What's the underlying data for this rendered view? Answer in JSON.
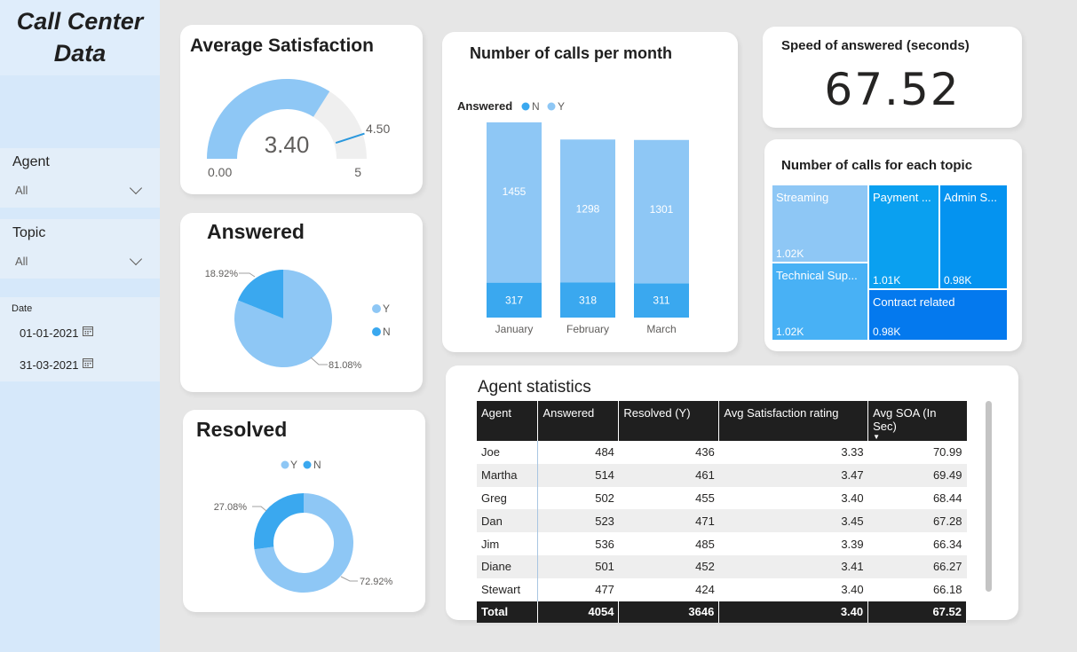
{
  "app": {
    "title_line1": "Call Center",
    "title_line2": "Data"
  },
  "filters": {
    "agent": {
      "label": "Agent",
      "value": "All"
    },
    "topic": {
      "label": "Topic",
      "value": "All"
    },
    "date": {
      "label": "Date",
      "start": "01-01-2021",
      "end": "31-03-2021"
    }
  },
  "satisfaction": {
    "title": "Average Satisfaction",
    "value": "3.40",
    "value_num": 3.4,
    "min": "0.00",
    "max": "5",
    "max_num": 5,
    "target": "4.50",
    "target_num": 4.5,
    "colors": {
      "fill": "#8ec7f5",
      "track": "#efefef",
      "target": "#2b98dd"
    }
  },
  "answered": {
    "title": "Answered",
    "legend": [
      {
        "key": "Y",
        "color": "#8ec7f5"
      },
      {
        "key": "N",
        "color": "#3aa8ef"
      }
    ],
    "slices": [
      {
        "key": "Y",
        "percent": 81.08,
        "label": "81.08%"
      },
      {
        "key": "N",
        "percent": 18.92,
        "label": "18.92%"
      }
    ]
  },
  "resolved": {
    "title": "Resolved",
    "legend": [
      {
        "key": "Y",
        "color": "#8ec7f5"
      },
      {
        "key": "N",
        "color": "#3aa8ef"
      }
    ],
    "slices": [
      {
        "key": "Y",
        "percent": 72.92,
        "label": "72.92%"
      },
      {
        "key": "N",
        "percent": 27.08,
        "label": "27.08%"
      }
    ]
  },
  "chart_data": {
    "type": "bar",
    "title": "Number of calls per month",
    "legend_title": "Answered",
    "categories": [
      "January",
      "February",
      "March"
    ],
    "stacked": true,
    "series": [
      {
        "name": "N",
        "values": [
          317,
          318,
          311
        ],
        "color": "#3aa8ef"
      },
      {
        "name": "Y",
        "values": [
          1455,
          1298,
          1301
        ],
        "color": "#8ec7f5"
      }
    ],
    "ylim": [
      0,
      1900
    ]
  },
  "speed": {
    "title": "Speed of answered (seconds)",
    "value": "67.52"
  },
  "topics": {
    "title": "Number of calls for each topic",
    "items": [
      {
        "name": "Streaming",
        "value": "1.02K",
        "color": "#8ec7f5"
      },
      {
        "name": "Technical Sup...",
        "value": "1.02K",
        "color": "#48b1f5"
      },
      {
        "name": "Payment ...",
        "value": "1.01K",
        "color": "#0aa0f0"
      },
      {
        "name": "Admin S...",
        "value": "0.98K",
        "color": "#0493f0"
      },
      {
        "name": "Contract related",
        "value": "0.98K",
        "color": "#0479ee"
      }
    ]
  },
  "agent_stats": {
    "title": "Agent statistics",
    "columns": [
      "Agent",
      "Answered",
      "Resolved (Y)",
      "Avg Satisfaction rating",
      "Avg SOA (In Sec)"
    ],
    "rows": [
      {
        "agent": "Joe",
        "answered": "484",
        "resolved": "436",
        "sat": "3.33",
        "soa": "70.99"
      },
      {
        "agent": "Martha",
        "answered": "514",
        "resolved": "461",
        "sat": "3.47",
        "soa": "69.49"
      },
      {
        "agent": "Greg",
        "answered": "502",
        "resolved": "455",
        "sat": "3.40",
        "soa": "68.44"
      },
      {
        "agent": "Dan",
        "answered": "523",
        "resolved": "471",
        "sat": "3.45",
        "soa": "67.28"
      },
      {
        "agent": "Jim",
        "answered": "536",
        "resolved": "485",
        "sat": "3.39",
        "soa": "66.34"
      },
      {
        "agent": "Diane",
        "answered": "501",
        "resolved": "452",
        "sat": "3.41",
        "soa": "66.27"
      },
      {
        "agent": "Stewart",
        "answered": "477",
        "resolved": "424",
        "sat": "3.40",
        "soa": "66.18"
      }
    ],
    "total": {
      "label": "Total",
      "answered": "4054",
      "resolved": "3646",
      "sat": "3.40",
      "soa": "67.52"
    }
  }
}
